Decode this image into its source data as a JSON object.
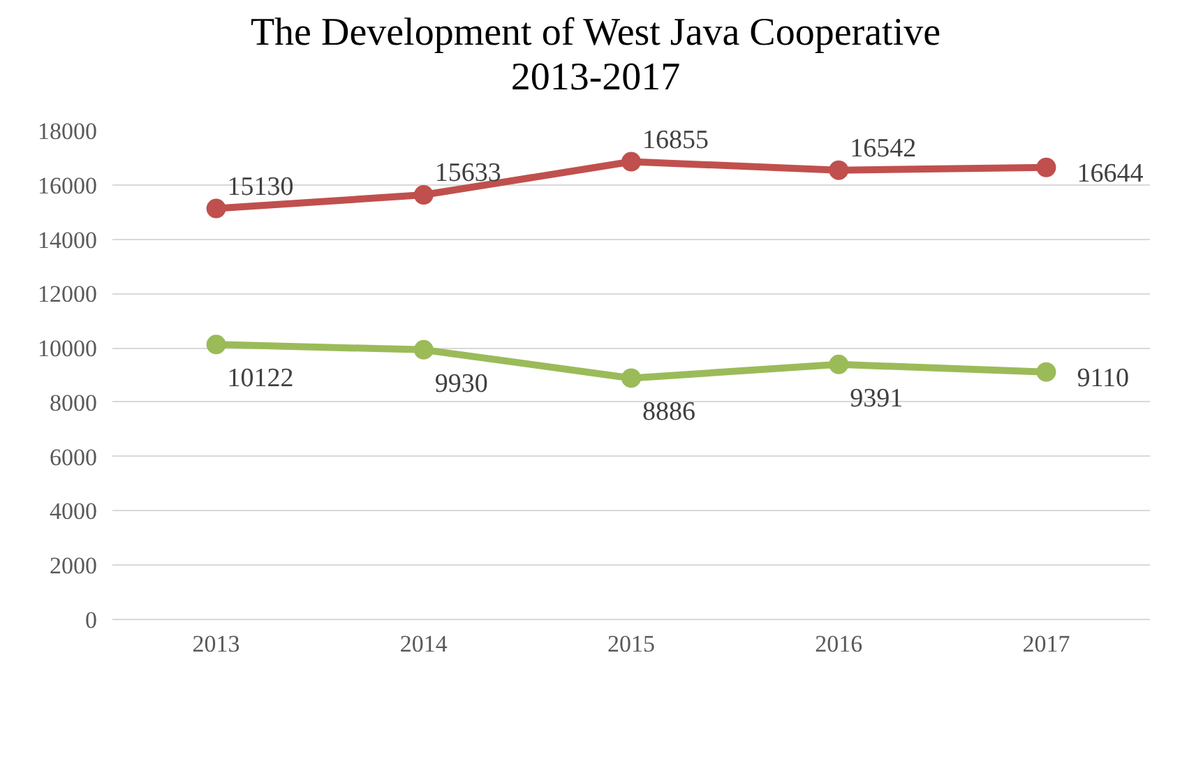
{
  "chart_data": {
    "type": "line",
    "title": "The Development of West Java Cooperative\n2013-2017",
    "categories": [
      "2013",
      "2014",
      "2015",
      "2016",
      "2017"
    ],
    "series": [
      {
        "color": "#c0504d",
        "values": [
          15130,
          15633,
          16855,
          16542,
          16644
        ]
      },
      {
        "color": "#9bbb59",
        "values": [
          10122,
          9930,
          8886,
          9391,
          9110
        ]
      }
    ],
    "ylim": [
      0,
      18000
    ],
    "yticks": [
      0,
      2000,
      4000,
      6000,
      8000,
      10000,
      12000,
      14000,
      16000,
      18000
    ],
    "grid": "y",
    "marker": "circle",
    "line_style": "solid",
    "data_labels": true
  }
}
